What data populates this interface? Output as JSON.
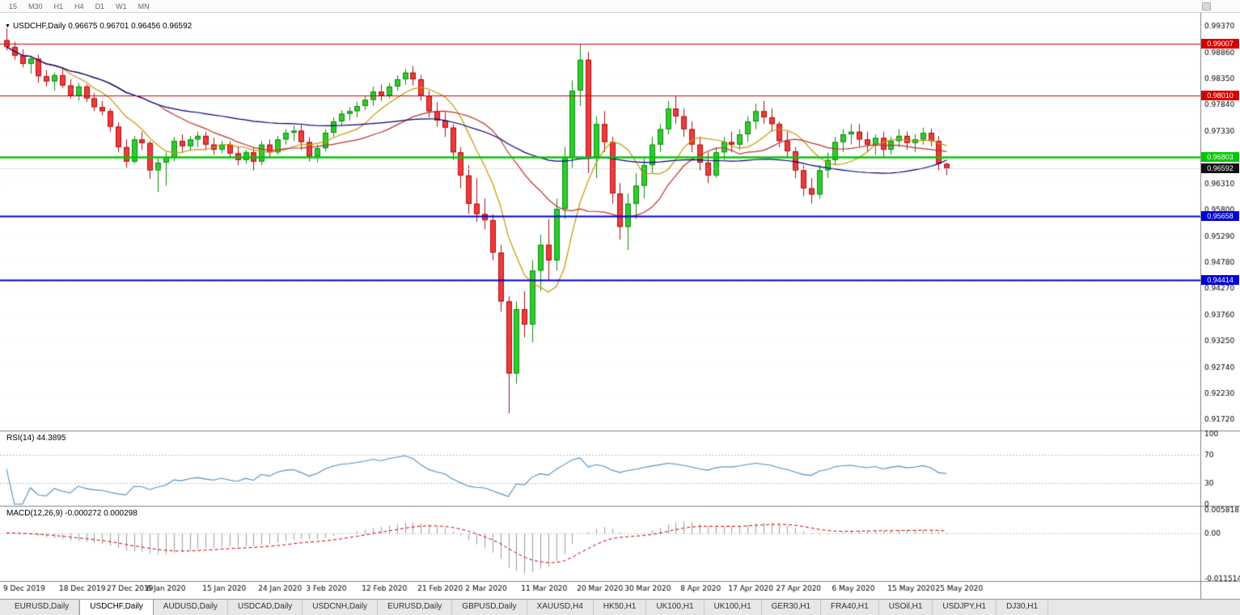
{
  "toolbar": {
    "timeframes": [
      "15",
      "M30",
      "H1",
      "H4",
      "D1",
      "W1",
      "MN"
    ]
  },
  "chart": {
    "title_symbol": "USDCHF,Daily",
    "title_ohlc": "0.96675 0.96701 0.96456 0.96592"
  },
  "indicators": {
    "rsi": {
      "label": "RSI(14) 44.3895",
      "period": 14,
      "levels": [
        70,
        30
      ],
      "axis_labels": [
        "100",
        "70",
        "30",
        "0"
      ],
      "line_color": "#4f8fc0"
    },
    "macd": {
      "label": "MACD(12,26,9) -0.000272 0.000298",
      "fast": 12,
      "slow": 26,
      "signal": 9,
      "histogram_color": "#9e9e9e",
      "signal_color": "#cc0000",
      "axis_labels": [
        {
          "text": "0.005818",
          "value": 0.005818
        },
        {
          "text": "0.00",
          "value": 0
        },
        {
          "text": "-0.011514",
          "value": -0.011514
        }
      ]
    }
  },
  "chart_data": {
    "type": "candlestick",
    "symbol": "USDCHF",
    "timeframe": "Daily",
    "y_range": [
      0.9149,
      0.9961
    ],
    "bar_spacing": 9.85,
    "x_offset": 8,
    "y_axis_labels": [
      "0.99370",
      "0.98860",
      "0.98350",
      "0.97840",
      "0.97330",
      "0.96820",
      "0.96310",
      "0.95800",
      "0.95290",
      "0.94780",
      "0.94270",
      "0.93760",
      "0.93250",
      "0.92740",
      "0.92230",
      "0.91720"
    ],
    "x_labels": [
      {
        "i": 0,
        "text": "9 Dec 2019"
      },
      {
        "i": 7,
        "text": "18 Dec 2019"
      },
      {
        "i": 13,
        "text": "27 Dec 2019"
      },
      {
        "i": 18,
        "text": "6 Jan 2020"
      },
      {
        "i": 25,
        "text": "15 Jan 2020"
      },
      {
        "i": 32,
        "text": "24 Jan 2020"
      },
      {
        "i": 38,
        "text": "3 Feb 2020"
      },
      {
        "i": 45,
        "text": "12 Feb 2020"
      },
      {
        "i": 52,
        "text": "21 Feb 2020"
      },
      {
        "i": 58,
        "text": "2 Mar 2020"
      },
      {
        "i": 65,
        "text": "11 Mar 2020"
      },
      {
        "i": 72,
        "text": "20 Mar 2020"
      },
      {
        "i": 78,
        "text": "30 Mar 2020"
      },
      {
        "i": 85,
        "text": "8 Apr 2020"
      },
      {
        "i": 91,
        "text": "17 Apr 2020"
      },
      {
        "i": 97,
        "text": "27 Apr 2020"
      },
      {
        "i": 104,
        "text": "6 May 2020"
      },
      {
        "i": 111,
        "text": "15 May 2020"
      },
      {
        "i": 117,
        "text": "25 May 2020"
      }
    ],
    "horizontal_lines": [
      {
        "price": 0.99007,
        "label": "0.99007",
        "color": "#d40000",
        "width": 1
      },
      {
        "price": 0.9801,
        "label": "0.98010",
        "color": "#d40000",
        "width": 1
      },
      {
        "price": 0.96803,
        "label": "0.96803",
        "color": "#00c800",
        "width": 2.5
      },
      {
        "price": 0.95658,
        "label": "0.95658",
        "color": "#0000d6",
        "width": 2
      },
      {
        "price": 0.94414,
        "label": "0.94414",
        "color": "#0000d6",
        "width": 2
      }
    ],
    "current_price": {
      "value": 0.96592,
      "label": "0.96592",
      "badge_color": "#111111"
    },
    "ma_lines": [
      {
        "period": 8,
        "color": "#c89600"
      },
      {
        "period": 20,
        "color": "#c03030"
      },
      {
        "period": 55,
        "color": "#000080"
      }
    ],
    "colors": {
      "bull_fill": "#2ecc2e",
      "bull_edge": "#128a12",
      "bear_fill": "#ee3b3b",
      "bear_edge": "#aa1212",
      "axis_text": "#000000"
    },
    "ohlc": [
      [
        0.9908,
        0.9931,
        0.9888,
        0.9895
      ],
      [
        0.9895,
        0.9905,
        0.987,
        0.9878
      ],
      [
        0.9878,
        0.989,
        0.9855,
        0.9862
      ],
      [
        0.9862,
        0.9878,
        0.9843,
        0.9872
      ],
      [
        0.9872,
        0.988,
        0.9825,
        0.9838
      ],
      [
        0.9838,
        0.985,
        0.9818,
        0.9828
      ],
      [
        0.9828,
        0.9845,
        0.981,
        0.984
      ],
      [
        0.984,
        0.9852,
        0.9815,
        0.982
      ],
      [
        0.982,
        0.9832,
        0.9795,
        0.98
      ],
      [
        0.98,
        0.9825,
        0.979,
        0.9818
      ],
      [
        0.9818,
        0.9822,
        0.9788,
        0.9795
      ],
      [
        0.9795,
        0.9805,
        0.977,
        0.9778
      ],
      [
        0.9778,
        0.979,
        0.9762,
        0.977
      ],
      [
        0.977,
        0.9775,
        0.973,
        0.974
      ],
      [
        0.974,
        0.9748,
        0.969,
        0.97
      ],
      [
        0.97,
        0.9715,
        0.966,
        0.9672
      ],
      [
        0.9672,
        0.9722,
        0.9668,
        0.9715
      ],
      [
        0.9715,
        0.973,
        0.9695,
        0.9708
      ],
      [
        0.9708,
        0.9712,
        0.9638,
        0.9655
      ],
      [
        0.9655,
        0.968,
        0.9613,
        0.967
      ],
      [
        0.967,
        0.969,
        0.9625,
        0.968
      ],
      [
        0.968,
        0.972,
        0.9672,
        0.9712
      ],
      [
        0.9712,
        0.9725,
        0.969,
        0.9702
      ],
      [
        0.9702,
        0.9722,
        0.9692,
        0.9715
      ],
      [
        0.9715,
        0.973,
        0.97,
        0.9722
      ],
      [
        0.9722,
        0.973,
        0.9695,
        0.9705
      ],
      [
        0.9705,
        0.9718,
        0.9685,
        0.9695
      ],
      [
        0.9695,
        0.9712,
        0.9688,
        0.9705
      ],
      [
        0.9705,
        0.9712,
        0.968,
        0.9688
      ],
      [
        0.9688,
        0.97,
        0.9665,
        0.9675
      ],
      [
        0.9675,
        0.9695,
        0.9668,
        0.969
      ],
      [
        0.969,
        0.97,
        0.9655,
        0.9672
      ],
      [
        0.9672,
        0.9712,
        0.9665,
        0.9705
      ],
      [
        0.9705,
        0.9715,
        0.968,
        0.969
      ],
      [
        0.969,
        0.9722,
        0.9685,
        0.9715
      ],
      [
        0.9715,
        0.9735,
        0.9705,
        0.9728
      ],
      [
        0.9728,
        0.9742,
        0.9712,
        0.9732
      ],
      [
        0.9732,
        0.9745,
        0.9695,
        0.971
      ],
      [
        0.971,
        0.972,
        0.9672,
        0.9682
      ],
      [
        0.9682,
        0.9705,
        0.967,
        0.9698
      ],
      [
        0.9698,
        0.9735,
        0.9692,
        0.9728
      ],
      [
        0.9728,
        0.9758,
        0.972,
        0.975
      ],
      [
        0.975,
        0.9772,
        0.974,
        0.9765
      ],
      [
        0.9765,
        0.9778,
        0.9752,
        0.977
      ],
      [
        0.977,
        0.9788,
        0.9758,
        0.978
      ],
      [
        0.978,
        0.98,
        0.9772,
        0.9792
      ],
      [
        0.9792,
        0.9818,
        0.978,
        0.9808
      ],
      [
        0.9808,
        0.9822,
        0.979,
        0.98
      ],
      [
        0.98,
        0.9825,
        0.9795,
        0.9818
      ],
      [
        0.9818,
        0.984,
        0.981,
        0.9832
      ],
      [
        0.9832,
        0.9852,
        0.9822,
        0.9845
      ],
      [
        0.9845,
        0.9858,
        0.982,
        0.9832
      ],
      [
        0.9832,
        0.984,
        0.979,
        0.98
      ],
      [
        0.98,
        0.981,
        0.9758,
        0.977
      ],
      [
        0.977,
        0.9788,
        0.974,
        0.9752
      ],
      [
        0.9752,
        0.9768,
        0.972,
        0.9738
      ],
      [
        0.9738,
        0.9745,
        0.9675,
        0.969
      ],
      [
        0.969,
        0.97,
        0.962,
        0.9645
      ],
      [
        0.9645,
        0.9665,
        0.957,
        0.959
      ],
      [
        0.959,
        0.964,
        0.9555,
        0.957
      ],
      [
        0.957,
        0.96,
        0.954,
        0.9558
      ],
      [
        0.9558,
        0.957,
        0.948,
        0.9495
      ],
      [
        0.9495,
        0.951,
        0.938,
        0.94
      ],
      [
        0.94,
        0.941,
        0.9182,
        0.926
      ],
      [
        0.926,
        0.94,
        0.924,
        0.9385
      ],
      [
        0.9385,
        0.942,
        0.933,
        0.9355
      ],
      [
        0.9355,
        0.948,
        0.932,
        0.946
      ],
      [
        0.946,
        0.953,
        0.942,
        0.951
      ],
      [
        0.951,
        0.956,
        0.944,
        0.948
      ],
      [
        0.948,
        0.96,
        0.946,
        0.958
      ],
      [
        0.958,
        0.97,
        0.956,
        0.968
      ],
      [
        0.968,
        0.983,
        0.966,
        0.981
      ],
      [
        0.981,
        0.9901,
        0.978,
        0.987
      ],
      [
        0.987,
        0.9885,
        0.965,
        0.968
      ],
      [
        0.968,
        0.976,
        0.964,
        0.9745
      ],
      [
        0.9745,
        0.977,
        0.969,
        0.971
      ],
      [
        0.971,
        0.972,
        0.959,
        0.961
      ],
      [
        0.961,
        0.963,
        0.952,
        0.9545
      ],
      [
        0.9545,
        0.961,
        0.95,
        0.959
      ],
      [
        0.959,
        0.965,
        0.956,
        0.9625
      ],
      [
        0.9625,
        0.968,
        0.96,
        0.9665
      ],
      [
        0.9665,
        0.972,
        0.965,
        0.9705
      ],
      [
        0.9705,
        0.9745,
        0.969,
        0.9735
      ],
      [
        0.9735,
        0.979,
        0.9725,
        0.9775
      ],
      [
        0.9775,
        0.98,
        0.9745,
        0.976
      ],
      [
        0.976,
        0.9775,
        0.972,
        0.9735
      ],
      [
        0.9735,
        0.975,
        0.969,
        0.9705
      ],
      [
        0.9705,
        0.972,
        0.9655,
        0.967
      ],
      [
        0.967,
        0.969,
        0.963,
        0.9645
      ],
      [
        0.9645,
        0.97,
        0.964,
        0.969
      ],
      [
        0.969,
        0.972,
        0.9675,
        0.971
      ],
      [
        0.971,
        0.973,
        0.969,
        0.9705
      ],
      [
        0.9705,
        0.9735,
        0.9695,
        0.9725
      ],
      [
        0.9725,
        0.976,
        0.971,
        0.975
      ],
      [
        0.975,
        0.9785,
        0.9735,
        0.977
      ],
      [
        0.977,
        0.979,
        0.9745,
        0.9758
      ],
      [
        0.9758,
        0.9775,
        0.973,
        0.9745
      ],
      [
        0.9745,
        0.975,
        0.97,
        0.9712
      ],
      [
        0.9712,
        0.973,
        0.968,
        0.9692
      ],
      [
        0.9692,
        0.97,
        0.964,
        0.9655
      ],
      [
        0.9655,
        0.9665,
        0.9605,
        0.962
      ],
      [
        0.962,
        0.964,
        0.959,
        0.9608
      ],
      [
        0.9608,
        0.9665,
        0.96,
        0.9655
      ],
      [
        0.9655,
        0.969,
        0.964,
        0.9675
      ],
      [
        0.9675,
        0.972,
        0.9665,
        0.971
      ],
      [
        0.971,
        0.9735,
        0.969,
        0.9725
      ],
      [
        0.9725,
        0.9745,
        0.9705,
        0.973
      ],
      [
        0.973,
        0.9745,
        0.97,
        0.9715
      ],
      [
        0.9715,
        0.973,
        0.969,
        0.9705
      ],
      [
        0.9705,
        0.9725,
        0.9685,
        0.9718
      ],
      [
        0.9718,
        0.973,
        0.968,
        0.9695
      ],
      [
        0.9695,
        0.972,
        0.9685,
        0.9712
      ],
      [
        0.9712,
        0.9735,
        0.97,
        0.9722
      ],
      [
        0.9722,
        0.973,
        0.9695,
        0.9708
      ],
      [
        0.9708,
        0.9725,
        0.969,
        0.9715
      ],
      [
        0.9715,
        0.9738,
        0.9705,
        0.9728
      ],
      [
        0.9728,
        0.9736,
        0.9702,
        0.9712
      ],
      [
        0.9712,
        0.9722,
        0.9655,
        0.9668
      ],
      [
        0.96675,
        0.96701,
        0.96456,
        0.96592
      ]
    ]
  },
  "tabs": [
    {
      "label": "EURUSD,Daily",
      "active": false
    },
    {
      "label": "USDCHF,Daily",
      "active": true
    },
    {
      "label": "AUDUSD,Daily",
      "active": false
    },
    {
      "label": "USDCAD,Daily",
      "active": false
    },
    {
      "label": "USDCNH,Daily",
      "active": false
    },
    {
      "label": "EURUSD,Daily",
      "active": false
    },
    {
      "label": "GBPUSD,Daily",
      "active": false
    },
    {
      "label": "XAUUSD,H4",
      "active": false
    },
    {
      "label": "HK50,H1",
      "active": false
    },
    {
      "label": "UK100,H1",
      "active": false
    },
    {
      "label": "UK100,H1",
      "active": false
    },
    {
      "label": "GER30,H1",
      "active": false
    },
    {
      "label": "FRA40,H1",
      "active": false
    },
    {
      "label": "USOil,H1",
      "active": false
    },
    {
      "label": "USDJPY,H1",
      "active": false
    },
    {
      "label": "DJ30,H1",
      "active": false
    }
  ]
}
